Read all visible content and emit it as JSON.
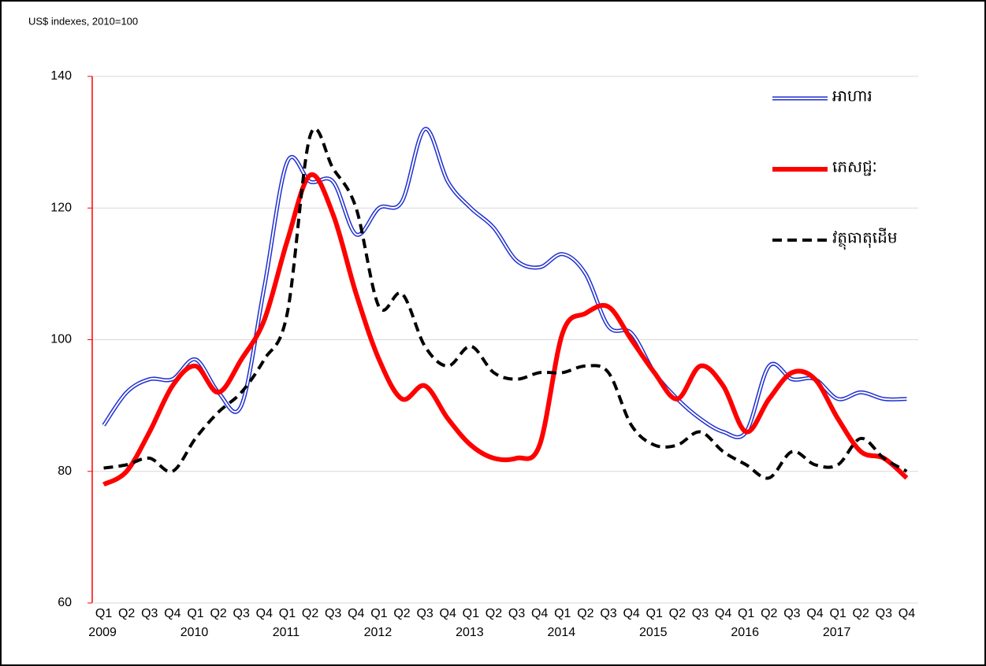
{
  "chart_data": {
    "type": "line",
    "ylabel": "US$ indexes, 2010=100",
    "categories": [
      "Q1",
      "Q2",
      "Q3",
      "Q4",
      "Q1",
      "Q2",
      "Q3",
      "Q4",
      "Q1",
      "Q2",
      "Q3",
      "Q4",
      "Q1",
      "Q2",
      "Q3",
      "Q4",
      "Q1",
      "Q2",
      "Q3",
      "Q4",
      "Q1",
      "Q2",
      "Q3",
      "Q4",
      "Q1",
      "Q2",
      "Q3",
      "Q4",
      "Q1",
      "Q2",
      "Q3",
      "Q4",
      "Q1",
      "Q2",
      "Q3",
      "Q4"
    ],
    "years": [
      "2009",
      "2010",
      "2011",
      "2012",
      "2013",
      "2014",
      "2015",
      "2016",
      "2017"
    ],
    "series": [
      {
        "name": "អាហារ",
        "color": "#1f2fd0",
        "line_style": "double",
        "values": [
          87,
          92,
          94,
          94,
          97,
          92,
          90,
          108,
          127,
          124,
          124,
          116,
          120,
          121,
          132,
          124,
          120,
          117,
          112,
          111,
          113,
          110,
          102,
          101,
          95,
          91,
          88,
          86,
          86,
          96,
          94,
          94,
          91,
          92,
          91,
          91
        ]
      },
      {
        "name": "ភេសជ្ជៈ",
        "color": "#ff0000",
        "line_style": "solid",
        "values": [
          78,
          80,
          86,
          93,
          96,
          92,
          97,
          103,
          115,
          125,
          119,
          107,
          97,
          91,
          93,
          88,
          84,
          82,
          82,
          84,
          101,
          104,
          105,
          100,
          95,
          91,
          96,
          93,
          86,
          91,
          95,
          94,
          88,
          83,
          82,
          79
        ]
      },
      {
        "name": "វត្ថុធាតុដើម",
        "color": "#000000",
        "line_style": "dashed",
        "values": [
          80.5,
          81,
          82,
          80,
          85,
          89,
          92,
          97,
          104,
          131,
          126,
          120,
          105,
          107,
          99,
          96,
          99,
          95,
          94,
          95,
          95,
          96,
          95,
          87,
          84,
          84,
          86,
          83,
          81,
          79,
          83,
          81,
          81,
          85,
          82,
          80
        ]
      }
    ],
    "ylim": [
      60,
      140
    ],
    "yticks": [
      60,
      80,
      100,
      120,
      140
    ],
    "grid": true,
    "legend": "top-right"
  }
}
